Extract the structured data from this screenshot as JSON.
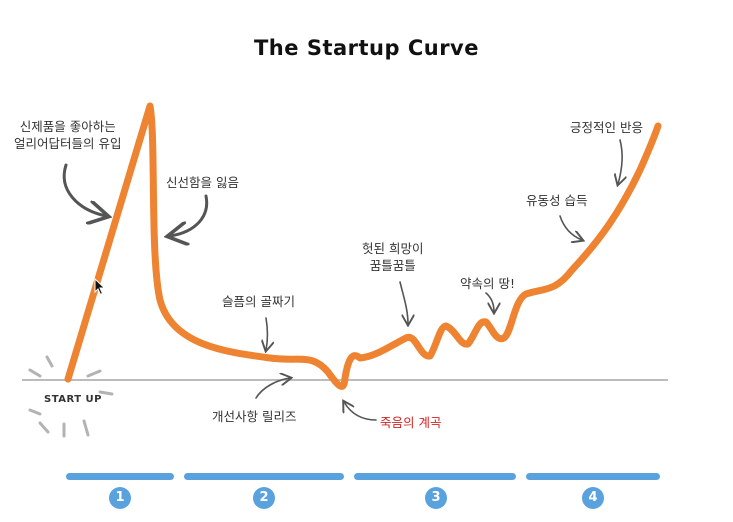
{
  "title": "The Startup Curve",
  "annotations": {
    "early_adopters": [
      "신제품을 좋아하는",
      "얼리어답터들의 유입"
    ],
    "lose_novelty": "신선함을 잃음",
    "trough_of_sorrow": "슬픔의 골짜기",
    "false_hope": [
      "헛된 희망이",
      "꿈틀꿈틀"
    ],
    "promised_land": "약속의 땅!",
    "liquidity": "유동성 습득",
    "positive_response": "긍정적인 반응",
    "improvements": "개선사항 릴리즈",
    "valley_of_death": "죽음의 계곡",
    "start_up": "START UP"
  },
  "phases": [
    {
      "number": "1"
    },
    {
      "number": "2"
    },
    {
      "number": "3"
    },
    {
      "number": "4"
    }
  ],
  "colors": {
    "curve": "#ee8332",
    "baseline": "#a6a6a6",
    "phase": "#5aa2dd",
    "arrow": "#555555",
    "valley_label": "#d42424"
  }
}
